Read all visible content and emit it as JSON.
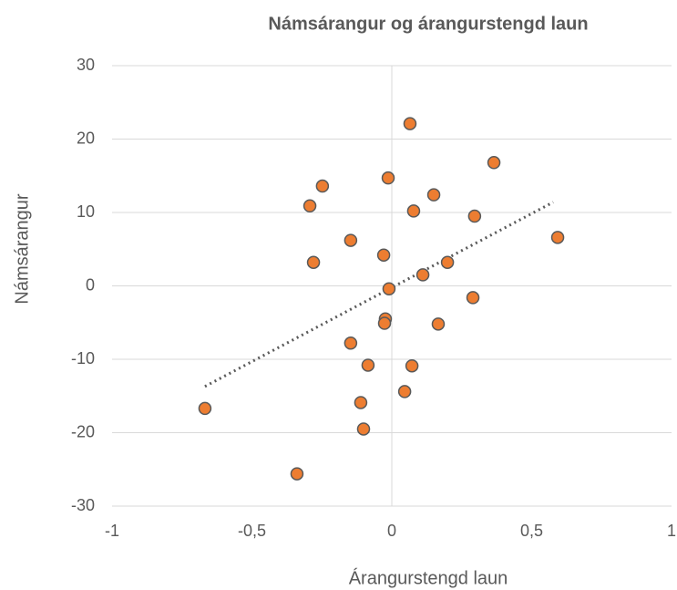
{
  "chart_data": {
    "type": "scatter",
    "title": "Námsárangur og árangurstengd laun",
    "x_label": "Árangurstengd laun",
    "y_label": "Námsárangur",
    "x": [
      0.065,
      0.365,
      -0.013,
      -0.248,
      0.15,
      -0.293,
      0.078,
      0.296,
      0.593,
      -0.147,
      -0.029,
      -0.28,
      0.199,
      0.111,
      -0.01,
      -0.023,
      -0.026,
      0.166,
      0.29,
      -0.147,
      -0.085,
      0.072,
      0.046,
      -0.111,
      -0.101,
      -0.668,
      -0.339
    ],
    "y": [
      22.1,
      16.8,
      14.7,
      13.6,
      12.4,
      10.9,
      10.2,
      9.5,
      6.6,
      6.2,
      4.2,
      3.2,
      3.2,
      1.5,
      -0.4,
      -4.5,
      -5.1,
      -5.2,
      -1.6,
      -7.8,
      -10.8,
      -10.9,
      -14.4,
      -15.9,
      -19.5,
      -16.7,
      -25.6
    ],
    "color": "#ed7d31",
    "trendline": {
      "x": [
        -0.668,
        0.577
      ],
      "y": [
        -13.7,
        11.4
      ],
      "color": "#595959"
    },
    "xlim": [
      -1,
      1
    ],
    "xticks": [
      -1,
      {
        "value": -0.5,
        "label": "-0,5"
      },
      0,
      {
        "value": 0.5,
        "label": "0,5"
      },
      1
    ],
    "ylim": [
      -30,
      30
    ],
    "yticks": [
      -30,
      -20,
      -10,
      0,
      10,
      20,
      30
    ],
    "grid": true
  }
}
